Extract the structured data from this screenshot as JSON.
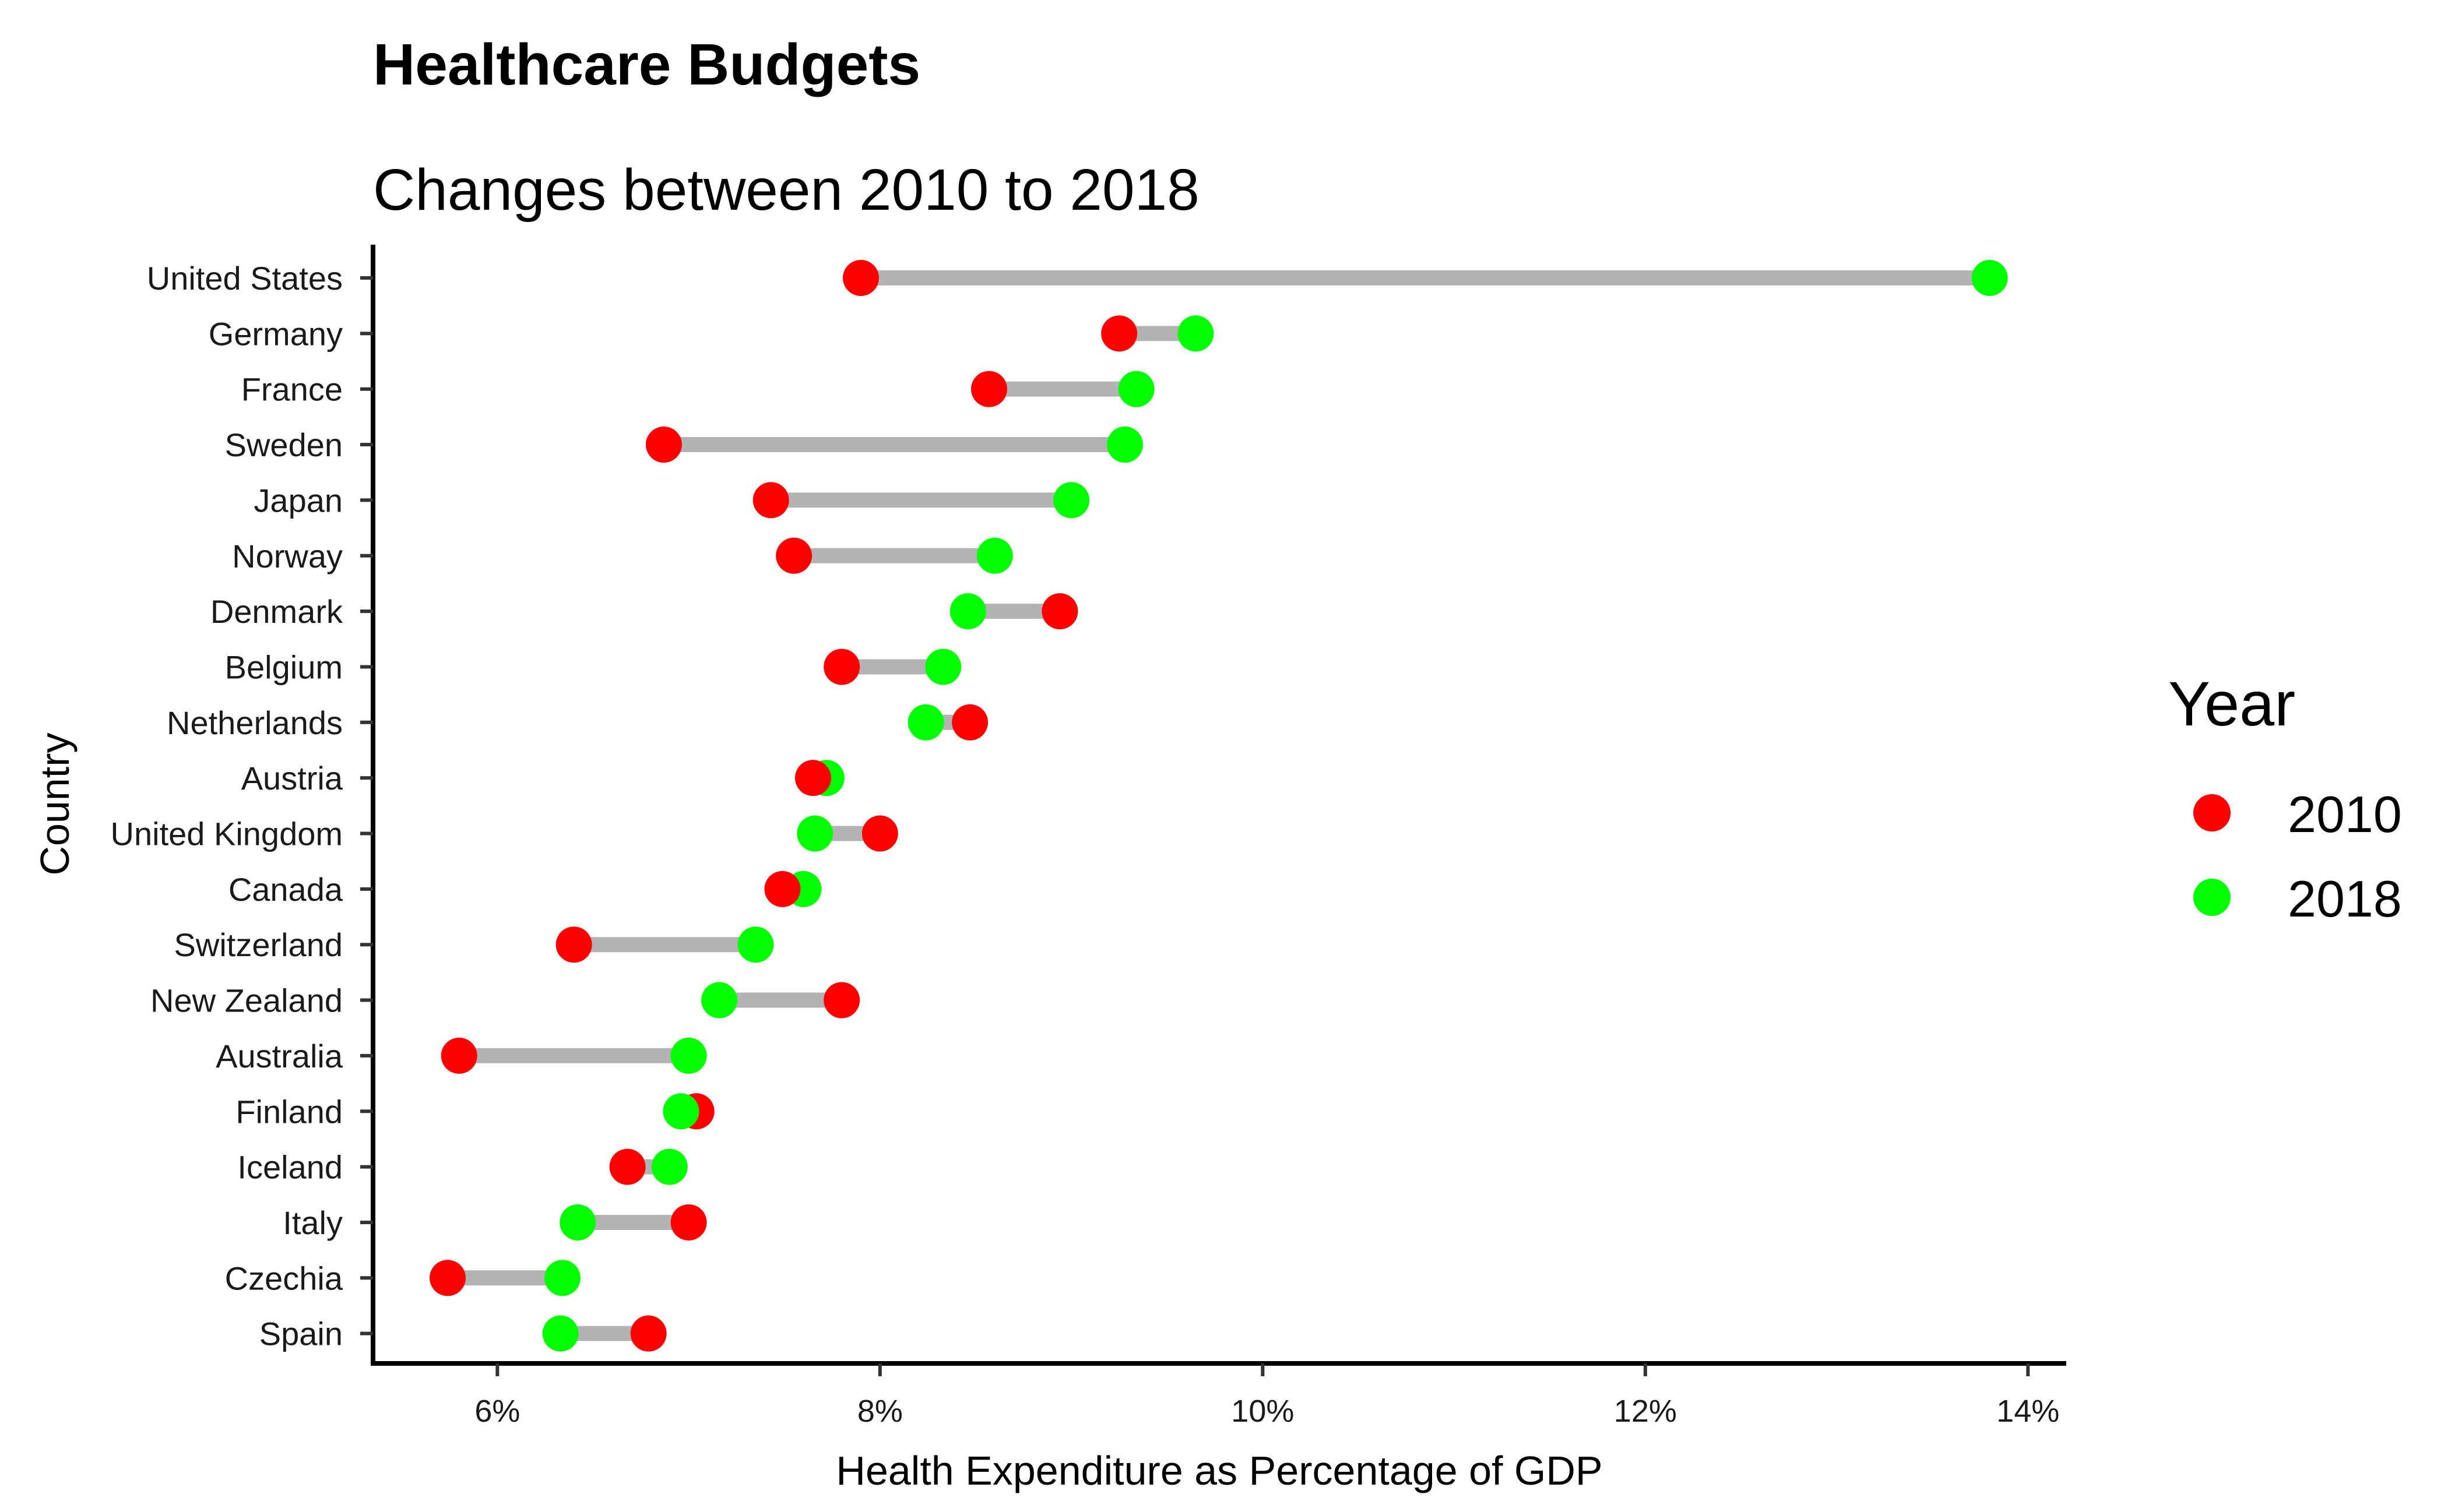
{
  "chart_data": {
    "type": "dumbbell",
    "title": "Healthcare Budgets",
    "subtitle": "Changes between 2010 to 2018",
    "xlabel": "Health Expenditure as Percentage of GDP",
    "ylabel": "Country",
    "xlim": [
      5.35,
      14.2
    ],
    "x_ticks": [
      {
        "value": 6,
        "label": "6%"
      },
      {
        "value": 8,
        "label": "8%"
      },
      {
        "value": 10,
        "label": "10%"
      },
      {
        "value": 12,
        "label": "12%"
      },
      {
        "value": 14,
        "label": "14%"
      }
    ],
    "grid": false,
    "legend": {
      "title": "Year",
      "position": "right",
      "entries": [
        {
          "label": "2010",
          "color": "#ff0000"
        },
        {
          "label": "2018",
          "color": "#00ff00"
        }
      ]
    },
    "colors": {
      "connector": "#b3b3b3",
      "y2010": "#ff0000",
      "y2018": "#00ff00"
    },
    "categories": [
      "United States",
      "Germany",
      "France",
      "Sweden",
      "Japan",
      "Norway",
      "Denmark",
      "Belgium",
      "Netherlands",
      "Austria",
      "United Kingdom",
      "Canada",
      "Switzerland",
      "New Zealand",
      "Australia",
      "Finland",
      "Iceland",
      "Italy",
      "Czechia",
      "Spain"
    ],
    "series": [
      {
        "name": "2010",
        "values": [
          7.9,
          9.25,
          8.57,
          6.87,
          7.43,
          7.55,
          8.94,
          7.8,
          8.47,
          7.65,
          8.0,
          7.49,
          6.4,
          7.8,
          5.8,
          7.04,
          6.68,
          7.0,
          5.74,
          6.79
        ]
      },
      {
        "name": "2018",
        "values": [
          13.8,
          9.65,
          9.34,
          9.28,
          9.0,
          8.6,
          8.46,
          8.33,
          8.24,
          7.72,
          7.66,
          7.6,
          7.35,
          7.16,
          7.0,
          6.96,
          6.9,
          6.42,
          6.34,
          6.33
        ]
      }
    ]
  }
}
